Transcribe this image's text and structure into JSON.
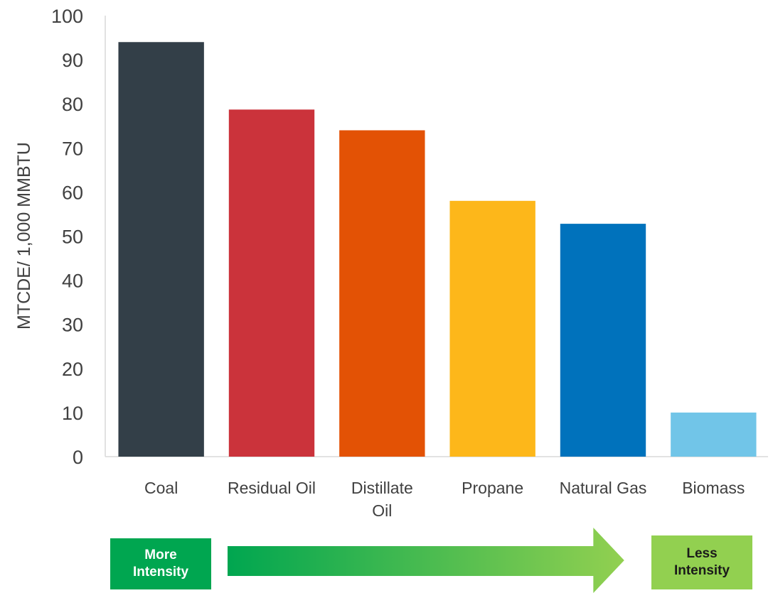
{
  "chart_data": {
    "type": "bar",
    "categories": [
      "Coal",
      "Residual Oil",
      "Distillate Oil",
      "Propane",
      "Natural Gas",
      "Biomass"
    ],
    "category_lines": [
      [
        "Coal"
      ],
      [
        "Residual Oil"
      ],
      [
        "Distillate",
        "Oil"
      ],
      [
        "Propane"
      ],
      [
        "Natural Gas"
      ],
      [
        "Biomass"
      ]
    ],
    "values": [
      94,
      78.7,
      74,
      58,
      52.8,
      10
    ],
    "colors": [
      "#333f48",
      "#cb333b",
      "#e35205",
      "#fdb71a",
      "#0072bc",
      "#71c5e8"
    ],
    "title": "",
    "xlabel": "",
    "ylabel": "MTCDE/ 1,000 MMBTU",
    "ylim": [
      0,
      100
    ],
    "yticks": [
      0,
      10,
      20,
      30,
      40,
      50,
      60,
      70,
      80,
      90,
      100
    ],
    "grid": false
  },
  "scale_arrow": {
    "left_label_line1": "More",
    "left_label_line2": "Intensity",
    "left_color": "#00a650",
    "right_label_line1": "Less",
    "right_label_line2": "Intensity",
    "right_color": "#92d050"
  }
}
